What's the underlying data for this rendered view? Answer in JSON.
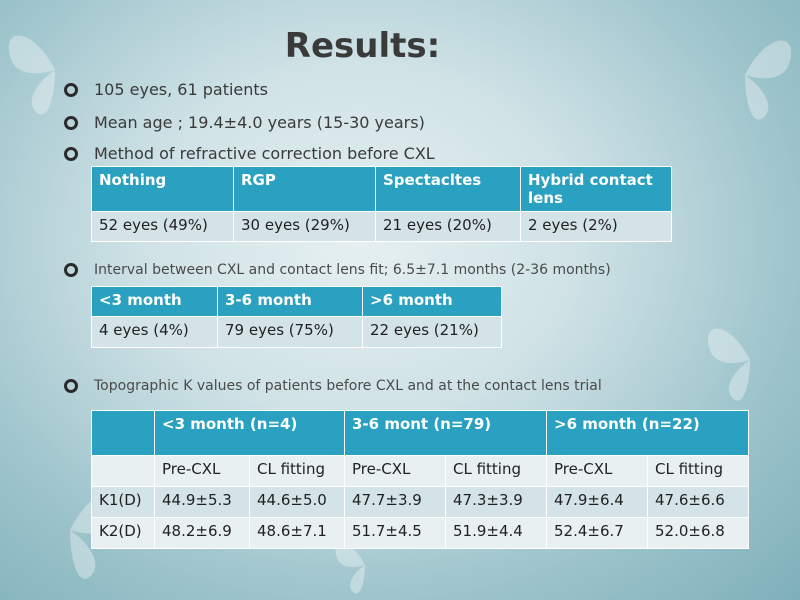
{
  "slide": {
    "title": "Results:",
    "bullets": [
      "105 eyes, 61 patients",
      "Mean age ; 19.4±4.0 years (15-30 years)",
      "Method of refractive correction before CXL",
      "Interval between CXL and contact lens fit; 6.5±7.1 months (2-36 months)",
      "Topographic K values of patients before CXL and at the contact lens trial"
    ]
  },
  "table1": {
    "headers": [
      "Nothing",
      "RGP",
      "Spectacltes",
      "Hybrid contact lens"
    ],
    "row": [
      "52 eyes (49%)",
      "30 eyes (29%)",
      "21 eyes (20%)",
      "2 eyes (2%)"
    ]
  },
  "table2": {
    "headers": [
      "<3 month",
      "3-6 month",
      ">6 month"
    ],
    "row": [
      "4 eyes (4%)",
      "79 eyes (75%)",
      "22 eyes (21%)"
    ]
  },
  "table3": {
    "group_headers": [
      "",
      "<3 month (n=4)",
      "3-6 mont (n=79)",
      ">6 month (n=22)"
    ],
    "sub_headers": [
      "",
      "Pre-CXL",
      "CL fitting",
      "Pre-CXL",
      "CL fitting",
      "Pre-CXL",
      "CL fitting"
    ],
    "rows": [
      [
        "K1(D)",
        "44.9±5.3",
        "44.6±5.0",
        "47.7±3.9",
        "47.3±3.9",
        "47.9±6.4",
        "47.6±6.6"
      ],
      [
        "K2(D)",
        "48.2±6.9",
        "48.6±7.1",
        "51.7±4.5",
        "51.9±4.4",
        "52.4±6.7",
        "52.0±6.8"
      ]
    ]
  }
}
